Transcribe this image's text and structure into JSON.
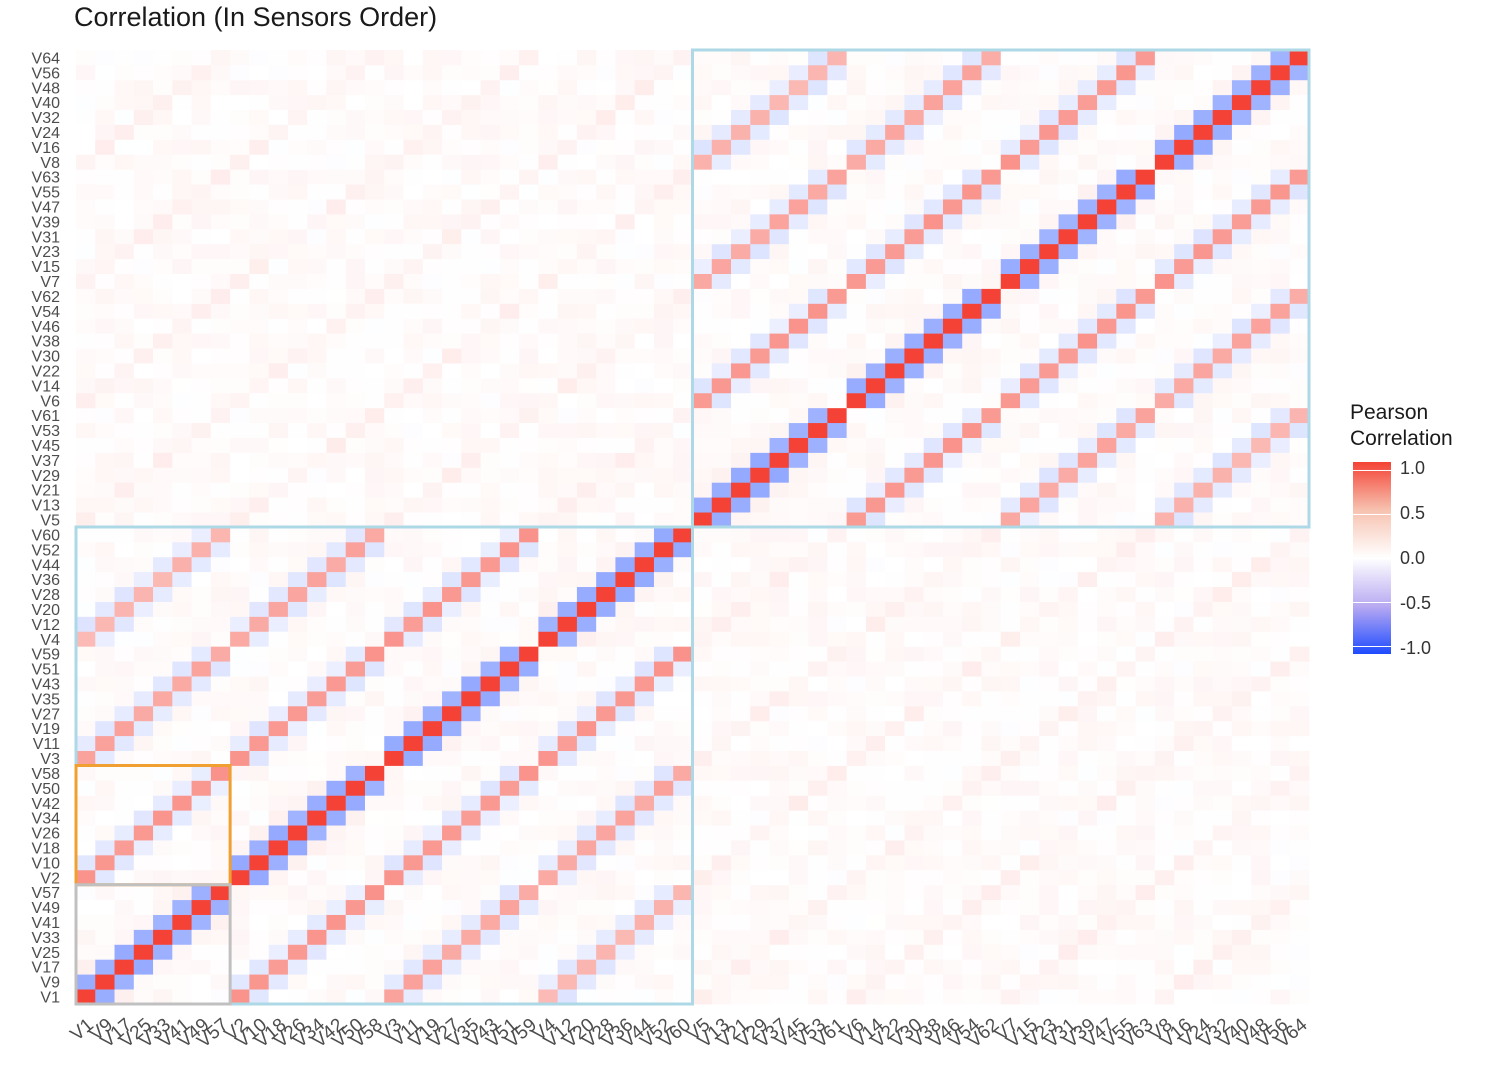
{
  "chart_data": {
    "type": "heatmap",
    "title": "Correlation (In Sensors Order)",
    "labels": [
      "V1",
      "V9",
      "V17",
      "V25",
      "V33",
      "V41",
      "V49",
      "V57",
      "V2",
      "V10",
      "V18",
      "V26",
      "V34",
      "V42",
      "V50",
      "V58",
      "V3",
      "V11",
      "V19",
      "V27",
      "V35",
      "V43",
      "V51",
      "V59",
      "V4",
      "V12",
      "V20",
      "V28",
      "V36",
      "V44",
      "V52",
      "V60",
      "V5",
      "V13",
      "V21",
      "V29",
      "V37",
      "V45",
      "V53",
      "V61",
      "V6",
      "V14",
      "V22",
      "V30",
      "V38",
      "V46",
      "V54",
      "V62",
      "V7",
      "V15",
      "V23",
      "V31",
      "V39",
      "V47",
      "V55",
      "V63",
      "V8",
      "V16",
      "V24",
      "V32",
      "V40",
      "V48",
      "V56",
      "V64"
    ],
    "x_axis": "labels, left to right",
    "y_axis": "labels, bottom to top",
    "pattern": {
      "description_of_cells": "Pearson correlation between sensor channels; main diagonal = 1.0; adjacent channels negatively correlated; within-block off-diagonals positive",
      "diagonal": 1.0,
      "adjacent_within_group": -0.45,
      "same_position_within_block_of_32": 0.55,
      "cross_block_same_position": 0.07,
      "background": 0.02
    },
    "highlight_boxes": [
      {
        "name": "block-1-32",
        "range": [
          "V1",
          "V60"
        ],
        "color": "#add8e6"
      },
      {
        "name": "block-33-64",
        "range": [
          "V5",
          "V64"
        ],
        "color": "#add8e6"
      },
      {
        "name": "group-V2-V58",
        "range": [
          "V2",
          "V58"
        ],
        "color": "#f0a030"
      },
      {
        "name": "group-V1-V57",
        "range": [
          "V1",
          "V57"
        ],
        "color": "#c0c0c0"
      }
    ],
    "color_scale": {
      "low": "#1e4bff",
      "mid": "#ffffff",
      "high": "#f44336",
      "limits": [
        -1.0,
        1.0
      ]
    }
  },
  "legend": {
    "title_line1": "Pearson",
    "title_line2": "Correlation",
    "ticks": [
      "1.0",
      "0.5",
      "0.0",
      "-0.5",
      "-1.0"
    ]
  }
}
